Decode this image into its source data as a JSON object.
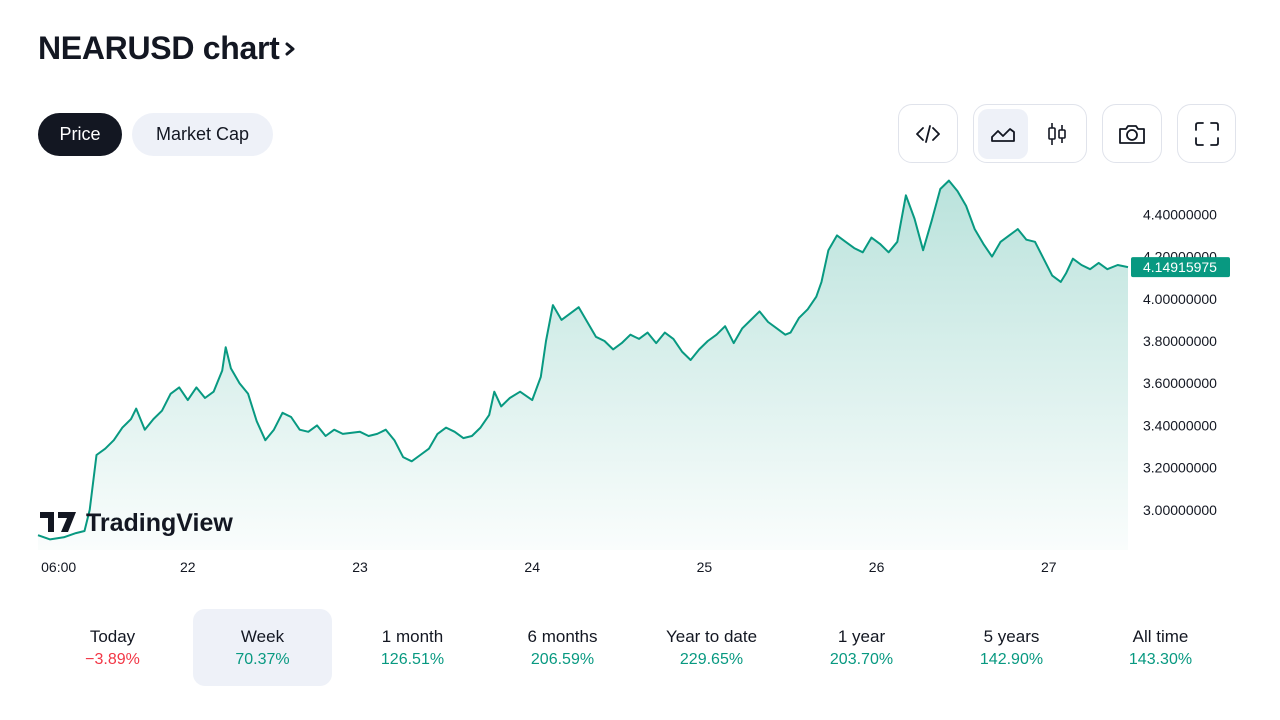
{
  "header": {
    "title": "NEARUSD chart"
  },
  "tabs": [
    {
      "label": "Price",
      "active": true
    },
    {
      "label": "Market Cap",
      "active": false
    }
  ],
  "toolbar": {
    "icons": [
      "embed-code-icon",
      "area-chart-icon",
      "candlestick-icon",
      "camera-icon",
      "fullscreen-icon"
    ],
    "selected": "area-chart-icon"
  },
  "watermark": {
    "text": "TradingView"
  },
  "colors": {
    "line": "#089981",
    "price_label_bg": "#089981",
    "negative": "#f23645",
    "positive": "#089981"
  },
  "chart_data": {
    "type": "area",
    "symbol": "NEARUSD",
    "last_price_label": "4.14915975",
    "y_ticks": [
      "4.40000000",
      "4.20000000",
      "4.00000000",
      "3.80000000",
      "3.60000000",
      "3.40000000",
      "3.20000000",
      "3.00000000"
    ],
    "y_tick_values": [
      4.4,
      4.2,
      4.0,
      3.8,
      3.6,
      3.4,
      3.2,
      3.0
    ],
    "ylim": [
      2.81,
      4.61
    ],
    "x_ticks": [
      "06:00",
      "22",
      "23",
      "24",
      "25",
      "26",
      "27"
    ],
    "x_tick_positions": [
      -0.75,
      0,
      1,
      2,
      3,
      4,
      5
    ],
    "xlim": [
      -0.87,
      5.46
    ],
    "x_unit_note": "x in days relative to day 22 00:00",
    "points": [
      [
        -0.87,
        2.88
      ],
      [
        -0.8,
        2.86
      ],
      [
        -0.72,
        2.87
      ],
      [
        -0.65,
        2.89
      ],
      [
        -0.6,
        2.9
      ],
      [
        -0.57,
        3.0
      ],
      [
        -0.53,
        3.26
      ],
      [
        -0.48,
        3.29
      ],
      [
        -0.43,
        3.33
      ],
      [
        -0.38,
        3.39
      ],
      [
        -0.33,
        3.43
      ],
      [
        -0.3,
        3.48
      ],
      [
        -0.25,
        3.38
      ],
      [
        -0.2,
        3.43
      ],
      [
        -0.15,
        3.47
      ],
      [
        -0.1,
        3.55
      ],
      [
        -0.05,
        3.58
      ],
      [
        0.0,
        3.52
      ],
      [
        0.05,
        3.58
      ],
      [
        0.1,
        3.53
      ],
      [
        0.15,
        3.56
      ],
      [
        0.2,
        3.66
      ],
      [
        0.22,
        3.77
      ],
      [
        0.25,
        3.67
      ],
      [
        0.3,
        3.6
      ],
      [
        0.35,
        3.55
      ],
      [
        0.4,
        3.42
      ],
      [
        0.45,
        3.33
      ],
      [
        0.5,
        3.38
      ],
      [
        0.55,
        3.46
      ],
      [
        0.6,
        3.44
      ],
      [
        0.65,
        3.38
      ],
      [
        0.7,
        3.37
      ],
      [
        0.75,
        3.4
      ],
      [
        0.8,
        3.35
      ],
      [
        0.85,
        3.38
      ],
      [
        0.9,
        3.36
      ],
      [
        1.0,
        3.37
      ],
      [
        1.05,
        3.35
      ],
      [
        1.1,
        3.36
      ],
      [
        1.15,
        3.38
      ],
      [
        1.2,
        3.33
      ],
      [
        1.25,
        3.25
      ],
      [
        1.3,
        3.23
      ],
      [
        1.35,
        3.26
      ],
      [
        1.4,
        3.29
      ],
      [
        1.45,
        3.36
      ],
      [
        1.5,
        3.39
      ],
      [
        1.55,
        3.37
      ],
      [
        1.6,
        3.34
      ],
      [
        1.65,
        3.35
      ],
      [
        1.7,
        3.39
      ],
      [
        1.75,
        3.45
      ],
      [
        1.78,
        3.56
      ],
      [
        1.82,
        3.49
      ],
      [
        1.87,
        3.53
      ],
      [
        1.93,
        3.56
      ],
      [
        2.0,
        3.52
      ],
      [
        2.05,
        3.63
      ],
      [
        2.08,
        3.8
      ],
      [
        2.12,
        3.97
      ],
      [
        2.17,
        3.9
      ],
      [
        2.22,
        3.93
      ],
      [
        2.27,
        3.96
      ],
      [
        2.32,
        3.89
      ],
      [
        2.37,
        3.82
      ],
      [
        2.42,
        3.8
      ],
      [
        2.47,
        3.76
      ],
      [
        2.52,
        3.79
      ],
      [
        2.57,
        3.83
      ],
      [
        2.62,
        3.81
      ],
      [
        2.67,
        3.84
      ],
      [
        2.72,
        3.79
      ],
      [
        2.77,
        3.84
      ],
      [
        2.82,
        3.81
      ],
      [
        2.87,
        3.75
      ],
      [
        2.92,
        3.71
      ],
      [
        2.97,
        3.76
      ],
      [
        3.02,
        3.8
      ],
      [
        3.07,
        3.83
      ],
      [
        3.12,
        3.87
      ],
      [
        3.17,
        3.79
      ],
      [
        3.22,
        3.86
      ],
      [
        3.27,
        3.9
      ],
      [
        3.32,
        3.94
      ],
      [
        3.37,
        3.89
      ],
      [
        3.42,
        3.86
      ],
      [
        3.47,
        3.83
      ],
      [
        3.5,
        3.84
      ],
      [
        3.55,
        3.91
      ],
      [
        3.6,
        3.95
      ],
      [
        3.65,
        4.01
      ],
      [
        3.68,
        4.08
      ],
      [
        3.72,
        4.23
      ],
      [
        3.77,
        4.3
      ],
      [
        3.82,
        4.27
      ],
      [
        3.87,
        4.24
      ],
      [
        3.92,
        4.22
      ],
      [
        3.97,
        4.29
      ],
      [
        4.02,
        4.26
      ],
      [
        4.07,
        4.22
      ],
      [
        4.12,
        4.27
      ],
      [
        4.17,
        4.49
      ],
      [
        4.22,
        4.38
      ],
      [
        4.27,
        4.23
      ],
      [
        4.32,
        4.37
      ],
      [
        4.37,
        4.52
      ],
      [
        4.42,
        4.56
      ],
      [
        4.47,
        4.51
      ],
      [
        4.52,
        4.44
      ],
      [
        4.57,
        4.33
      ],
      [
        4.62,
        4.26
      ],
      [
        4.67,
        4.2
      ],
      [
        4.72,
        4.27
      ],
      [
        4.77,
        4.3
      ],
      [
        4.82,
        4.33
      ],
      [
        4.87,
        4.28
      ],
      [
        4.92,
        4.27
      ],
      [
        4.97,
        4.19
      ],
      [
        5.02,
        4.11
      ],
      [
        5.07,
        4.08
      ],
      [
        5.1,
        4.12
      ],
      [
        5.14,
        4.19
      ],
      [
        5.19,
        4.16
      ],
      [
        5.24,
        4.14
      ],
      [
        5.29,
        4.17
      ],
      [
        5.34,
        4.14
      ],
      [
        5.4,
        4.16
      ],
      [
        5.46,
        4.15
      ]
    ],
    "grid": false,
    "legend": "none"
  },
  "ranges": [
    {
      "label": "Today",
      "change": "−3.89%",
      "dir": "neg"
    },
    {
      "label": "Week",
      "change": "70.37%",
      "dir": "pos",
      "selected": true
    },
    {
      "label": "1 month",
      "change": "126.51%",
      "dir": "pos"
    },
    {
      "label": "6 months",
      "change": "206.59%",
      "dir": "pos"
    },
    {
      "label": "Year to date",
      "change": "229.65%",
      "dir": "pos"
    },
    {
      "label": "1 year",
      "change": "203.70%",
      "dir": "pos"
    },
    {
      "label": "5 years",
      "change": "142.90%",
      "dir": "pos"
    },
    {
      "label": "All time",
      "change": "143.30%",
      "dir": "pos"
    }
  ]
}
